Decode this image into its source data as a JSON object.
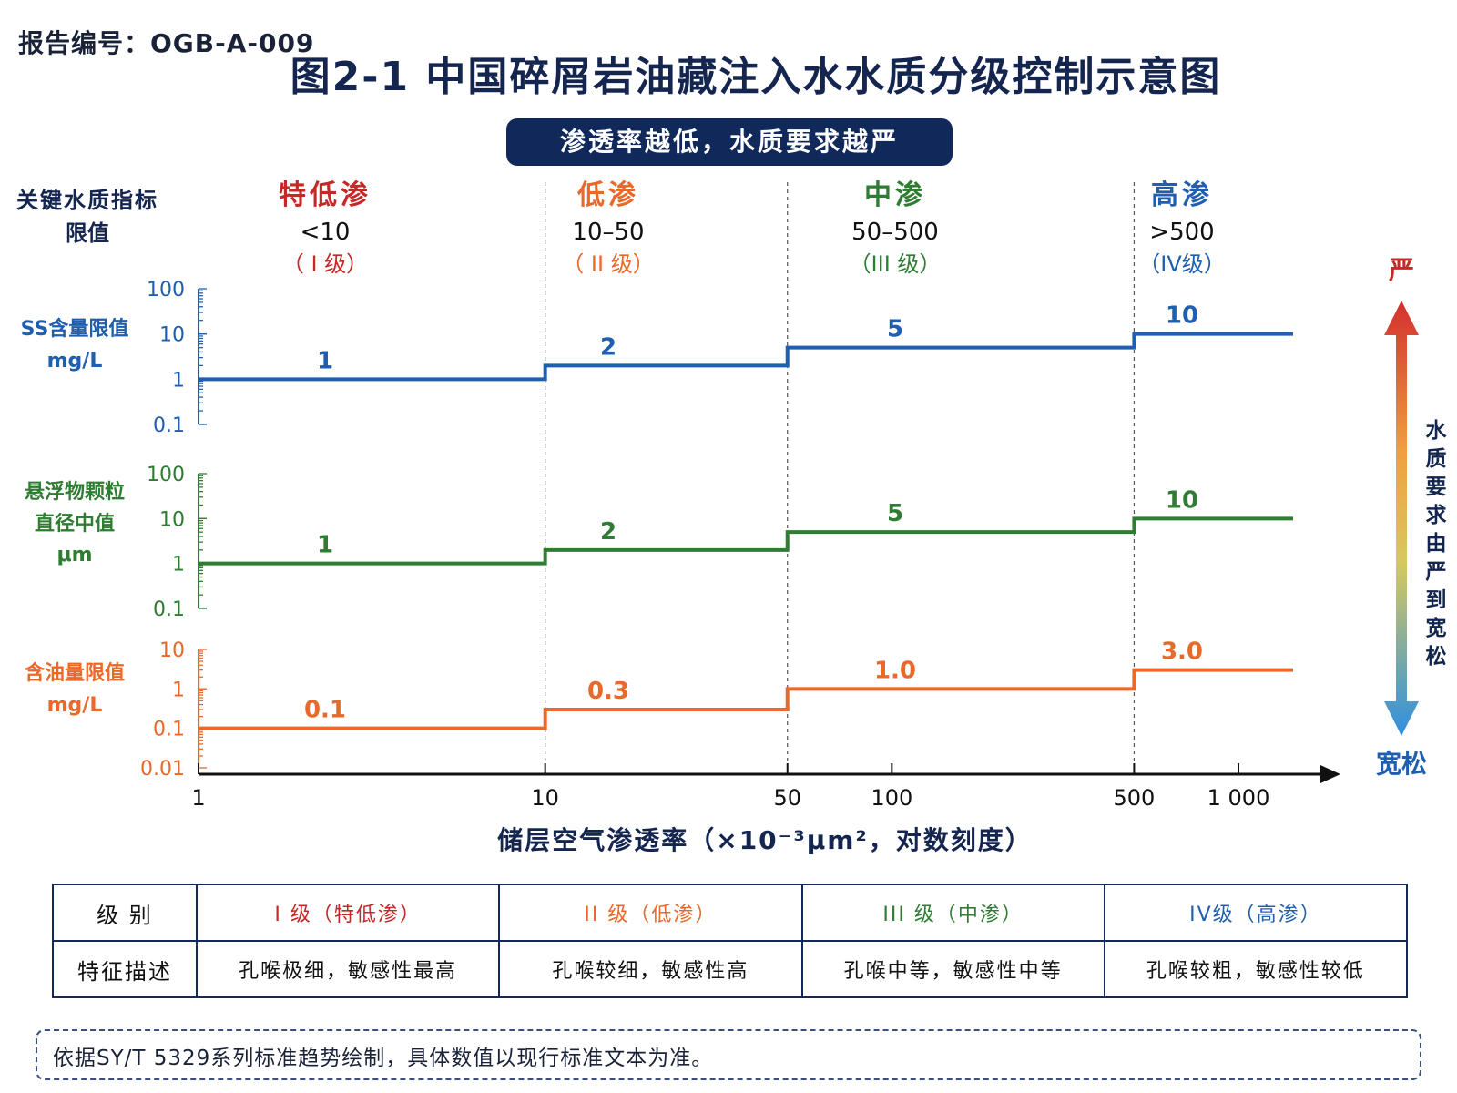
{
  "report_no": "报告编号：OGB-A-009",
  "title": "图2-1   中国碎屑岩油藏注入水水质分级控制示意图",
  "banner": "渗透率越低，水质要求越严",
  "colors": {
    "navy": "#14254f",
    "blue": "#1f5fb0",
    "green": "#2e7d32",
    "orange": "#e8692a",
    "red": "#c62828"
  },
  "chart_data": {
    "type": "line",
    "left_header": [
      "关键水质指标",
      "限值"
    ],
    "x_label": "储层空气渗透率（×10⁻³μm²，对数刻度）",
    "x_scale": "log",
    "x_ticks": [
      "1",
      "10",
      "50",
      "100",
      "500",
      "1 000"
    ],
    "x_tick_values": [
      1,
      10,
      50,
      100,
      500,
      1000
    ],
    "boundaries": [
      10,
      50,
      500
    ],
    "zones": [
      {
        "name": "特低渗",
        "range": "<10",
        "grade": "（ I 级）",
        "color": "#c62828"
      },
      {
        "name": "低渗",
        "range": "10–50",
        "grade": "（ II 级）",
        "color": "#e8692a"
      },
      {
        "name": "中渗",
        "range": "50–500",
        "grade": "（III 级）",
        "color": "#2e7d32"
      },
      {
        "name": "高渗",
        "range": ">500",
        "grade": "（IV级）",
        "color": "#1f5fb0"
      }
    ],
    "panels": [
      {
        "label": [
          "SS含量限值",
          "mg/L"
        ],
        "color": "#1f5fb0",
        "y_scale": "log",
        "ylim": [
          0.1,
          100
        ],
        "y_ticks": [
          "100",
          "10",
          "1",
          "0.1"
        ],
        "y_tick_values": [
          100,
          10,
          1,
          0.1
        ],
        "values": [
          1,
          2,
          5,
          10
        ],
        "labels": [
          "1",
          "2",
          "5",
          "10"
        ]
      },
      {
        "label": [
          "悬浮物颗粒",
          "直径中值",
          "μm"
        ],
        "color": "#2e7d32",
        "y_scale": "log",
        "ylim": [
          0.1,
          100
        ],
        "y_ticks": [
          "100",
          "10",
          "1",
          "0.1"
        ],
        "y_tick_values": [
          100,
          10,
          1,
          0.1
        ],
        "values": [
          1,
          2,
          5,
          10
        ],
        "labels": [
          "1",
          "2",
          "5",
          "10"
        ]
      },
      {
        "label": [
          "含油量限值",
          "mg/L"
        ],
        "color": "#e8692a",
        "y_scale": "log",
        "ylim": [
          0.01,
          10
        ],
        "y_ticks": [
          "10",
          "1",
          "0.1",
          "0.01"
        ],
        "y_tick_values": [
          10,
          1,
          0.1,
          0.01
        ],
        "values": [
          0.1,
          0.3,
          1.0,
          3.0
        ],
        "labels": [
          "0.1",
          "0.3",
          "1.0",
          "3.0"
        ]
      }
    ],
    "strictness": {
      "top": "严",
      "bottom": "宽松",
      "text": "水质要求由严到宽松"
    }
  },
  "table": {
    "row1": [
      "级 别",
      "I 级（特低渗）",
      "II 级（低渗）",
      "III 级（中渗）",
      "IV级（高渗）"
    ],
    "row2": [
      "特征描述",
      "孔喉极细，敏感性最高",
      "孔喉较细，敏感性高",
      "孔喉中等，敏感性中等",
      "孔喉较粗，敏感性较低"
    ]
  },
  "note": "依据SY/T 5329系列标准趋势绘制，具体数值以现行标准文本为准。"
}
